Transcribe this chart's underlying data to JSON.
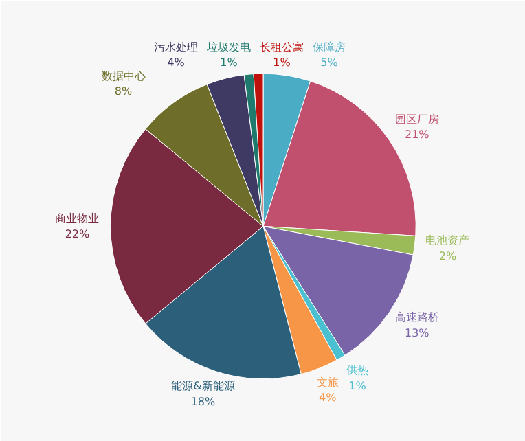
{
  "chart_data": {
    "type": "pie",
    "categories": [
      "保障房",
      "园区厂房",
      "电池资产",
      "高速路桥",
      "供热",
      "文旅",
      "能源&新能源",
      "商业物业",
      "数据中心",
      "污水处理",
      "垃圾发电",
      "长租公寓"
    ],
    "values": [
      5,
      21,
      2,
      13,
      1,
      4,
      18,
      22,
      8,
      4,
      1,
      1
    ],
    "value_labels": [
      "5%",
      "21%",
      "2%",
      "13%",
      "1%",
      "4%",
      "18%",
      "22%",
      "8%",
      "4%",
      "1%",
      "1%"
    ],
    "colors": [
      "#4bacc6",
      "#c0506e",
      "#9bbb59",
      "#7a64a8",
      "#4bc0d0",
      "#f79646",
      "#2c5f7a",
      "#7a2a40",
      "#6e6e2a",
      "#3e3a63",
      "#1f7a6e",
      "#c0120c"
    ]
  }
}
